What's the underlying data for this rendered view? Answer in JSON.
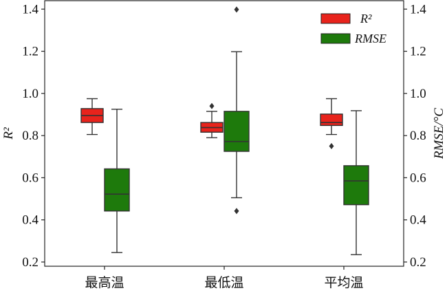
{
  "chart_data": {
    "type": "box",
    "categories": [
      "最高温",
      "最低温",
      "平均温"
    ],
    "ylabel_left": "R²",
    "ylabel_right": "RMSE/°C",
    "ylim": [
      0.18,
      1.44
    ],
    "yticks": [
      0.2,
      0.4,
      0.6,
      0.8,
      1.0,
      1.2,
      1.4
    ],
    "ytick_labels": [
      "0.2",
      "0.4",
      "0.6",
      "0.8",
      "1.0",
      "1.2",
      "1.4"
    ],
    "legend_position": "top-right",
    "grid": false,
    "series": [
      {
        "name": "R²",
        "color": "#e8231c",
        "boxes": [
          {
            "whisker_low": 0.805,
            "q1": 0.862,
            "median": 0.895,
            "q3": 0.928,
            "whisker_high": 0.975,
            "outliers": []
          },
          {
            "whisker_low": 0.79,
            "q1": 0.816,
            "median": 0.838,
            "q3": 0.862,
            "whisker_high": 0.915,
            "outliers": [
              0.94
            ]
          },
          {
            "whisker_low": 0.805,
            "q1": 0.848,
            "median": 0.862,
            "q3": 0.902,
            "whisker_high": 0.975,
            "outliers": [
              0.75
            ]
          }
        ]
      },
      {
        "name": "RMSE",
        "color": "#1e7a0c",
        "boxes": [
          {
            "whisker_low": 0.245,
            "q1": 0.442,
            "median": 0.522,
            "q3": 0.642,
            "whisker_high": 0.925,
            "outliers": []
          },
          {
            "whisker_low": 0.505,
            "q1": 0.725,
            "median": 0.772,
            "q3": 0.915,
            "whisker_high": 1.198,
            "outliers": [
              0.442,
              1.398
            ]
          },
          {
            "whisker_low": 0.235,
            "q1": 0.472,
            "median": 0.585,
            "q3": 0.657,
            "whisker_high": 0.918,
            "outliers": []
          }
        ]
      }
    ]
  }
}
